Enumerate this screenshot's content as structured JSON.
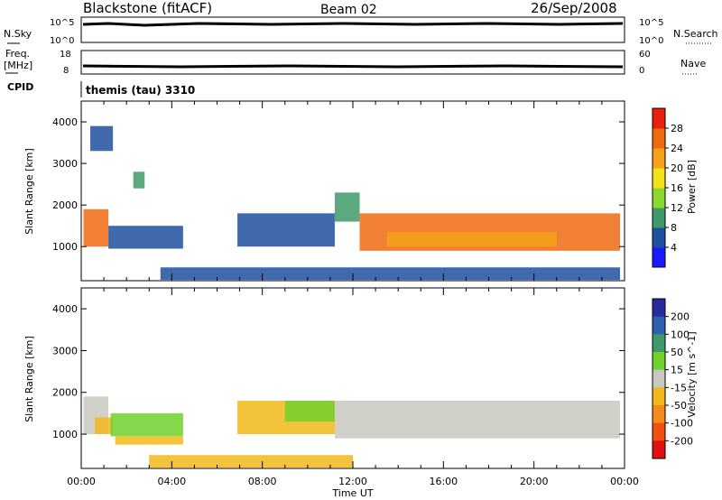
{
  "header": {
    "station": "Blackstone (fitACF)",
    "beam": "Beam 02",
    "date": "26/Sep/2008"
  },
  "top_panels": {
    "nsky_label": "N.Sky",
    "nsky_ticks": [
      "10^5",
      "10^0"
    ],
    "nsearch_label": "N.Search",
    "nsearch_ticks": [
      "10^5",
      "10^0"
    ],
    "freq_label": "Freq.",
    "freq_unit": "[MHz]",
    "freq_ticks": [
      "18",
      "8"
    ],
    "nave_label": "Nave",
    "nave_ticks": [
      "60",
      "0"
    ],
    "cpid_label": "CPID",
    "cpid_value": "themis (tau) 3310"
  },
  "colors": {
    "power_scale": [
      "#1a1aff",
      "#1f4fa0",
      "#3f9a6a",
      "#8dd82c",
      "#f2e21a",
      "#f5a21a",
      "#f06a10",
      "#e82010"
    ],
    "velocity_scale": [
      "#2a2aa0",
      "#2f5fb0",
      "#3f9a6a",
      "#70d02c",
      "#c8c8c0",
      "#f2b81a",
      "#f58a1a",
      "#f05010",
      "#e01010"
    ]
  },
  "chart_data": [
    {
      "type": "heatmap",
      "title": "",
      "xlabel": "Time UT",
      "ylabel": "Slant Range [km]",
      "x_ticks": [
        "00:00",
        "04:00",
        "08:00",
        "12:00",
        "16:00",
        "20:00",
        "00:00"
      ],
      "x_range_hours": [
        0,
        24
      ],
      "y_ticks": [
        "1000",
        "2000",
        "3000",
        "4000"
      ],
      "ylim_km": [
        180,
        4500
      ],
      "colorbar_label": "Power [dB]",
      "colorbar_ticks": [
        "4",
        "8",
        "12",
        "16",
        "20",
        "24",
        "28"
      ],
      "regions": [
        {
          "t0": 0.1,
          "t1": 1.2,
          "r0": 1000,
          "r1": 1900,
          "color": "#f06a10"
        },
        {
          "t0": 1.2,
          "t1": 4.5,
          "r0": 950,
          "r1": 1500,
          "color": "#1f4fa0"
        },
        {
          "t0": 0.4,
          "t1": 1.4,
          "r0": 3300,
          "r1": 3900,
          "color": "#1f4fa0"
        },
        {
          "t0": 2.3,
          "t1": 2.8,
          "r0": 2400,
          "r1": 2800,
          "color": "#3f9a6a"
        },
        {
          "t0": 6.9,
          "t1": 11.2,
          "r0": 1000,
          "r1": 1800,
          "color": "#1f4fa0"
        },
        {
          "t0": 11.2,
          "t1": 12.3,
          "r0": 1600,
          "r1": 2300,
          "color": "#3f9a6a"
        },
        {
          "t0": 12.3,
          "t1": 23.8,
          "r0": 900,
          "r1": 1800,
          "color": "#f06a10"
        },
        {
          "t0": 13.5,
          "t1": 21.0,
          "r0": 1000,
          "r1": 1350,
          "color": "#f5a21a"
        },
        {
          "t0": 3.5,
          "t1": 23.8,
          "r0": 200,
          "r1": 500,
          "color": "#1f4fa0"
        }
      ]
    },
    {
      "type": "heatmap",
      "title": "",
      "xlabel": "Time UT",
      "ylabel": "Slant Range [km]",
      "x_ticks": [
        "00:00",
        "04:00",
        "08:00",
        "12:00",
        "16:00",
        "20:00",
        "00:00"
      ],
      "x_range_hours": [
        0,
        24
      ],
      "y_ticks": [
        "1000",
        "2000",
        "3000",
        "4000"
      ],
      "ylim_km": [
        180,
        4500
      ],
      "colorbar_label": "Velocity [m s^-1]",
      "colorbar_ticks": [
        "200",
        "100",
        "50",
        "15",
        "-15",
        "-50",
        "-100",
        "-200"
      ],
      "regions": [
        {
          "t0": 0.1,
          "t1": 1.2,
          "r0": 1000,
          "r1": 1900,
          "color": "#c8c8c0"
        },
        {
          "t0": 0.6,
          "t1": 1.4,
          "r0": 1000,
          "r1": 1400,
          "color": "#f2b81a"
        },
        {
          "t0": 1.3,
          "t1": 4.5,
          "r0": 950,
          "r1": 1500,
          "color": "#70d02c"
        },
        {
          "t0": 1.5,
          "t1": 4.5,
          "r0": 750,
          "r1": 950,
          "color": "#f2b81a"
        },
        {
          "t0": 6.9,
          "t1": 11.2,
          "r0": 1000,
          "r1": 1800,
          "color": "#f2b81a"
        },
        {
          "t0": 9.0,
          "t1": 11.2,
          "r0": 1300,
          "r1": 1800,
          "color": "#70d02c"
        },
        {
          "t0": 11.2,
          "t1": 23.8,
          "r0": 900,
          "r1": 1800,
          "color": "#c8c8c0"
        },
        {
          "t0": 3.0,
          "t1": 12.0,
          "r0": 200,
          "r1": 500,
          "color": "#f2b81a"
        }
      ]
    }
  ]
}
